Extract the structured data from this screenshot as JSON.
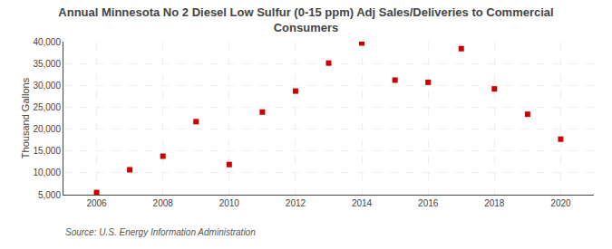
{
  "chart_data": {
    "type": "scatter",
    "title": "Annual Minnesota No 2 Diesel Low Sulfur (0-15 ppm) Adj Sales/Deliveries to Commercial\nConsumers",
    "ylabel": "Thousand Gallons",
    "annotations": [
      "Source: U.S. Energy Information Administration"
    ],
    "x": [
      2006,
      2007,
      2008,
      2009,
      2010,
      2011,
      2012,
      2013,
      2014,
      2015,
      2016,
      2017,
      2018,
      2019,
      2020
    ],
    "values": [
      5500,
      10700,
      13800,
      21700,
      11900,
      23900,
      28700,
      35100,
      39700,
      31200,
      30700,
      38400,
      29200,
      23400,
      17700
    ],
    "color": "#CC0000",
    "marker": "square",
    "xlim": [
      2005,
      2021
    ],
    "xticks": [
      2006,
      2008,
      2010,
      2012,
      2014,
      2016,
      2018,
      2020
    ],
    "ylim": [
      5000,
      40000
    ],
    "yticks": [
      {
        "value": 5000,
        "label": "5,000"
      },
      {
        "value": 10000,
        "label": "10,000"
      },
      {
        "value": 15000,
        "label": "15,000"
      },
      {
        "value": 20000,
        "label": "20,000"
      },
      {
        "value": 25000,
        "label": "25,000"
      },
      {
        "value": 30000,
        "label": "30,000"
      },
      {
        "value": 35000,
        "label": "35,000"
      },
      {
        "value": 40000,
        "label": "40,000"
      }
    ],
    "grid": true
  }
}
